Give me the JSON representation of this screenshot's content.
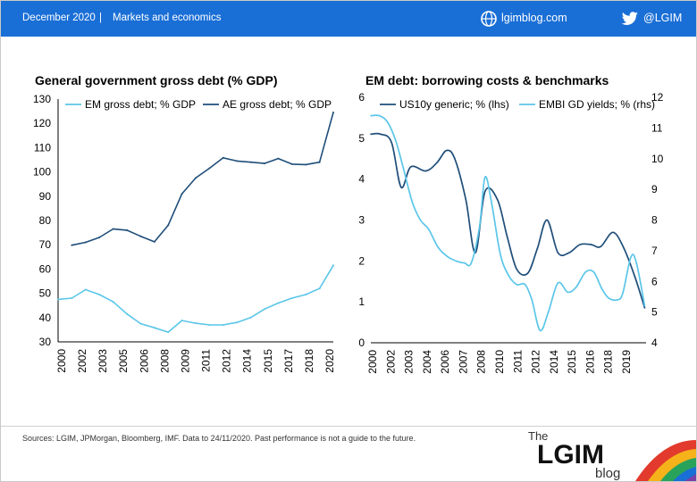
{
  "header": {
    "date": "December 2020",
    "separator": "|",
    "category": "Markets and economics",
    "site": "lgimblog.com",
    "twitter": "@LGIM"
  },
  "footer": {
    "source": "Sources: LGIM, JPMorgan, Bloomberg, IMF. Data to 24/11/2020. Past performance is not a guide to the future.",
    "logo_the": "The",
    "logo_main": "LGIM",
    "logo_blog": "blog"
  },
  "colors": {
    "header_bg": "#1a6fd6",
    "dark_series": "#1f4e79",
    "light_series": "#5bc6e8"
  },
  "chart_data": [
    {
      "type": "line",
      "title": "General government gross debt (% GDP)",
      "x": [
        2000,
        2001,
        2002,
        2003,
        2004,
        2005,
        2006,
        2007,
        2008,
        2009,
        2010,
        2011,
        2012,
        2013,
        2014,
        2015,
        2016,
        2017,
        2018,
        2019,
        2020
      ],
      "xtick_labels": [
        "2000",
        "2002",
        "2003",
        "2005",
        "2006",
        "2008",
        "2009",
        "2011",
        "2012",
        "2014",
        "2015",
        "2017",
        "2018",
        "2020"
      ],
      "ylim": [
        30,
        130
      ],
      "yticks": [
        30,
        40,
        50,
        60,
        70,
        80,
        90,
        100,
        110,
        120,
        130
      ],
      "series": [
        {
          "name": "EM gross debt; % GDP",
          "color": "#5bc6e8",
          "x": [
            2000,
            2001,
            2002,
            2003,
            2004,
            2005,
            2006,
            2007,
            2008,
            2009,
            2010,
            2011,
            2012,
            2013,
            2014,
            2015,
            2016,
            2017,
            2018,
            2019,
            2020
          ],
          "values": [
            47.5,
            48,
            51.5,
            49.5,
            46.5,
            41.5,
            37.5,
            35.8,
            34,
            38.8,
            37.7,
            37,
            37,
            38,
            40,
            43.5,
            46,
            48,
            49.5,
            52,
            61.5
          ]
        },
        {
          "name": "AE gross debt; % GDP",
          "color": "#1f4e79",
          "x": [
            2001,
            2002,
            2003,
            2004,
            2005,
            2006,
            2007,
            2008,
            2009,
            2010,
            2011,
            2012,
            2013,
            2014,
            2015,
            2016,
            2017,
            2018,
            2019,
            2020
          ],
          "values": [
            69.8,
            71,
            73,
            76.5,
            76,
            73.5,
            71.2,
            78,
            91,
            97.5,
            101.5,
            105.8,
            104.5,
            104,
            103.5,
            105.5,
            103.2,
            103,
            104,
            124.5
          ]
        }
      ]
    },
    {
      "type": "line",
      "title": "EM debt: borrowing costs & benchmarks",
      "xlim": [
        2000,
        2020
      ],
      "xtick_labels": [
        "2000",
        "2002",
        "2003",
        "2004",
        "2006",
        "2007",
        "2008",
        "2010",
        "2011",
        "2012",
        "2014",
        "2015",
        "2016",
        "2018",
        "2019"
      ],
      "ylim_left": [
        0,
        6
      ],
      "yticks_left": [
        0,
        1,
        2,
        3,
        4,
        5,
        6
      ],
      "ylim_right": [
        4,
        12
      ],
      "yticks_right": [
        4,
        5,
        6,
        7,
        8,
        9,
        10,
        11,
        12
      ],
      "series": [
        {
          "name": "US10y generic; % (lhs)",
          "axis": "left",
          "color": "#1f4e79",
          "x": [
            2000,
            2000.7,
            2001.5,
            2002.2,
            2002.9,
            2004,
            2004.8,
            2005.5,
            2006.1,
            2006.9,
            2007.6,
            2008.3,
            2009.2,
            2009.9,
            2010.6,
            2011.4,
            2012.1,
            2012.8,
            2013.6,
            2014.4,
            2015.2,
            2016,
            2016.7,
            2017.6,
            2018.4,
            2019.2,
            2019.9
          ],
          "values": [
            5.1,
            5.1,
            4.9,
            3.8,
            4.3,
            4.2,
            4.4,
            4.7,
            4.5,
            3.5,
            2.2,
            3.7,
            3.5,
            2.6,
            1.8,
            1.7,
            2.3,
            3.0,
            2.2,
            2.2,
            2.4,
            2.4,
            2.35,
            2.7,
            2.3,
            1.6,
            0.85
          ]
        },
        {
          "name": "EMBI GD yields; % (rhs)",
          "axis": "right",
          "color": "#5bc6e8",
          "x": [
            2000,
            2000.6,
            2001.2,
            2001.8,
            2002.3,
            2003.0,
            2003.6,
            2004.2,
            2004.9,
            2005.6,
            2006.3,
            2006.8,
            2007.3,
            2007.9,
            2008.3,
            2008.8,
            2009.4,
            2010.0,
            2010.6,
            2011.2,
            2011.7,
            2012.3,
            2012.9,
            2013.6,
            2014.3,
            2014.9,
            2015.6,
            2016.2,
            2016.8,
            2017.3,
            2017.9,
            2018.3,
            2018.9,
            2019.3,
            2019.9
          ],
          "values": [
            11.4,
            11.4,
            11.2,
            10.6,
            9.8,
            8.6,
            8.0,
            7.7,
            7.1,
            6.8,
            6.65,
            6.6,
            6.6,
            7.8,
            9.4,
            8.5,
            6.9,
            6.2,
            5.9,
            5.9,
            5.4,
            4.4,
            5.0,
            5.95,
            5.65,
            5.8,
            6.3,
            6.3,
            5.75,
            5.45,
            5.4,
            5.6,
            6.8,
            6.6,
            5.2
          ]
        }
      ]
    }
  ]
}
